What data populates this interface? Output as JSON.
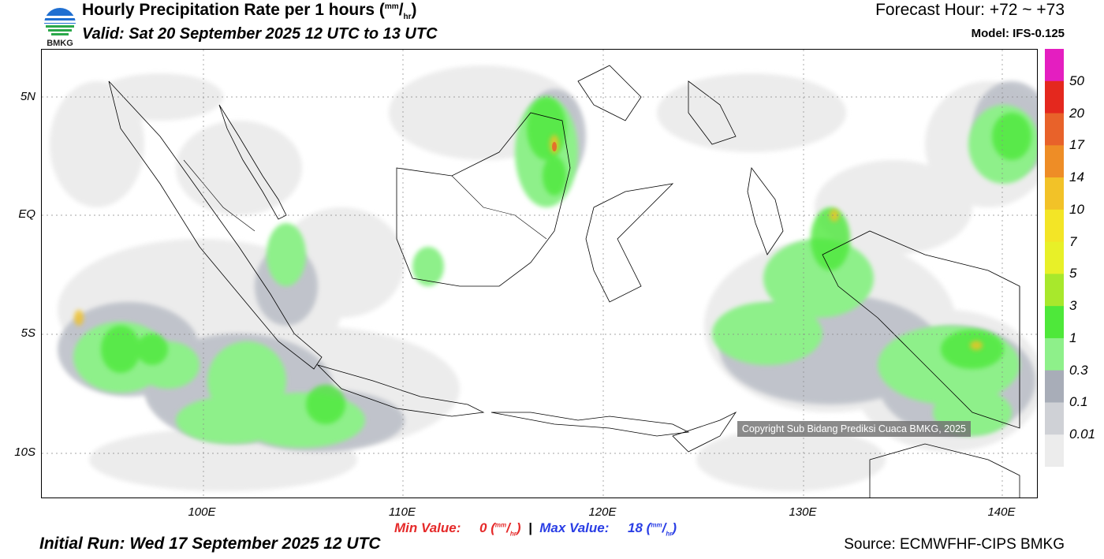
{
  "header": {
    "logo_text": "BMKG",
    "title_main": "Hourly Precipitation Rate per 1 hours (",
    "title_unit_sup": "mm",
    "title_unit_sub": "hr",
    "title_close": ")",
    "valid": "Valid: Sat 20 September 2025 12 UTC to 13 UTC",
    "forecast_hour": "Forecast Hour: +72 ~ +73",
    "model": "Model: IFS-0.125"
  },
  "map": {
    "lat_labels": [
      "5N",
      "EQ",
      "5S",
      "10S"
    ],
    "lon_labels": [
      "100E",
      "110E",
      "120E",
      "130E",
      "140E"
    ],
    "copyright": "Copyright Sub Bidang Prediksi Cuaca BMKG, 2025"
  },
  "colorbar": {
    "labels": [
      "50",
      "20",
      "17",
      "14",
      "10",
      "7",
      "5",
      "3",
      "1",
      "0.3",
      "0.1",
      "0.01"
    ],
    "colors": [
      "#e41ec0",
      "#e4281e",
      "#e8622a",
      "#ee8d26",
      "#f2c228",
      "#f3e526",
      "#e8f028",
      "#a8e82c",
      "#4ee83a",
      "#8ef08a",
      "#a8adb8",
      "#cfd1d6",
      "#ececec"
    ]
  },
  "footer": {
    "min_label": "Min Value:",
    "min_value": "0",
    "separator": "|",
    "max_label": "Max Value:",
    "max_value": "18",
    "unit_sup": "mm",
    "unit_sub": "hr",
    "initial_run": "Initial Run: Wed 17 September 2025 12 UTC",
    "source": "Source: ECMWFHF-CIPS BMKG"
  }
}
